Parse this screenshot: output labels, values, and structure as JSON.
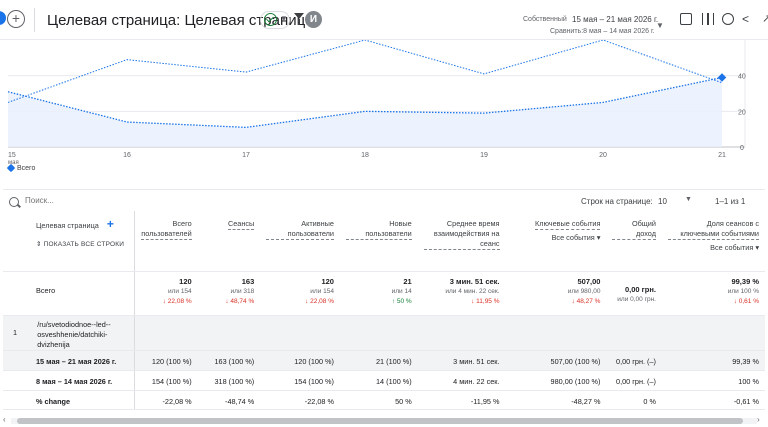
{
  "header": {
    "title": "Целевая страница: Целевая страница",
    "avatar_letter": "И",
    "date_label": "Собственный",
    "date_range": "15 мая – 21 мая 2026 г.",
    "compare_range": "Сравнить:8 мая – 14 мая 2026 г."
  },
  "colors": {
    "accent": "#1a73e8",
    "negative": "#d93025",
    "positive": "#188038",
    "series_current": "#1a73e8",
    "series_previous": "#1a73e8"
  },
  "icons": [
    "add-icon",
    "check-circle-icon",
    "filter-icon",
    "customize-report-icon",
    "compare-icon",
    "insights-icon",
    "share-icon",
    "expand-icon",
    "search-icon"
  ],
  "chart_data": {
    "type": "line",
    "x": [
      "15",
      "16",
      "17",
      "18",
      "19",
      "20",
      "21"
    ],
    "x_sublabel": "мая",
    "y_ticks": [
      "20",
      "40"
    ],
    "y_zero": "0",
    "ylim": [
      0,
      60
    ],
    "grid": true,
    "series": [
      {
        "name": "Всего",
        "style": "solid-area",
        "values": [
          31,
          14,
          11,
          20,
          19,
          25,
          39
        ]
      },
      {
        "style": "dashed",
        "values": [
          25,
          49,
          42,
          67,
          41,
          63,
          36
        ]
      }
    ],
    "legend_position": "bottom-left"
  },
  "legend": {
    "label": "Всего"
  },
  "table": {
    "search_placeholder": "Поиск...",
    "rows_per_page_label": "Строк на странице:",
    "rows_per_page": "10",
    "pagination": "1–1 из 1",
    "dimension_header": "Целевая страница",
    "show_all_rows": "ПОКАЗАТЬ ВСЕ СТРОКИ",
    "columns": [
      {
        "label": "Всего пользователей"
      },
      {
        "label": "Сеансы"
      },
      {
        "label": "Активные пользователи"
      },
      {
        "label": "Новые пользователи"
      },
      {
        "label": "Среднее время взаимодействия на сеанс"
      },
      {
        "label": "Ключевые события",
        "dropdown": "Все события"
      },
      {
        "label": "Общий доход"
      },
      {
        "label": "Доля сеансов с ключевыми событиями",
        "dropdown": "Все события"
      }
    ],
    "total": {
      "label": "Всего",
      "values": [
        {
          "value": "120",
          "compare": "или 154",
          "change": "↓ 22,08 %",
          "dir": "neg"
        },
        {
          "value": "163",
          "compare": "или 318",
          "change": "↓ 48,74 %",
          "dir": "neg"
        },
        {
          "value": "120",
          "compare": "или 154",
          "change": "↓ 22,08 %",
          "dir": "neg"
        },
        {
          "value": "21",
          "compare": "или 14",
          "change": "↑ 50 %",
          "dir": "pos"
        },
        {
          "value": "3 мин. 51 сек.",
          "compare": "или 4 мин. 22 сек.",
          "change": "↓ 11,95 %",
          "dir": "neg"
        },
        {
          "value": "507,00",
          "compare": "или 980,00",
          "change": "↓ 48,27 %",
          "dir": "neg"
        },
        {
          "value": "0,00 грн.",
          "compare": "или 0,00 грн.",
          "change": "",
          "dir": ""
        },
        {
          "value": "99,39 %",
          "compare": "или 100 %",
          "change": "↓ 0,61 %",
          "dir": "neg"
        }
      ]
    },
    "row": {
      "index": "1",
      "page": "/ru/svetodiodnoe--led--osveshhenie/datchiki-dvizhenija",
      "periods": [
        {
          "label": "15 мая – 21 мая 2026 г.",
          "values": [
            "120 (100 %)",
            "163 (100 %)",
            "120 (100 %)",
            "21 (100 %)",
            "3 мин. 51 сек.",
            "507,00 (100 %)",
            "0,00 грн. (–)",
            "99,39 %"
          ]
        },
        {
          "label": "8 мая – 14 мая 2026 г.",
          "values": [
            "154 (100 %)",
            "318 (100 %)",
            "154 (100 %)",
            "14 (100 %)",
            "4 мин. 22 сек.",
            "980,00 (100 %)",
            "0,00 грн. (–)",
            "100 %"
          ]
        },
        {
          "label": "% change",
          "values": [
            "-22,08 %",
            "-48,74 %",
            "-22,08 %",
            "50 %",
            "-11,95 %",
            "-48,27 %",
            "0 %",
            "-0,61 %"
          ]
        }
      ]
    }
  }
}
